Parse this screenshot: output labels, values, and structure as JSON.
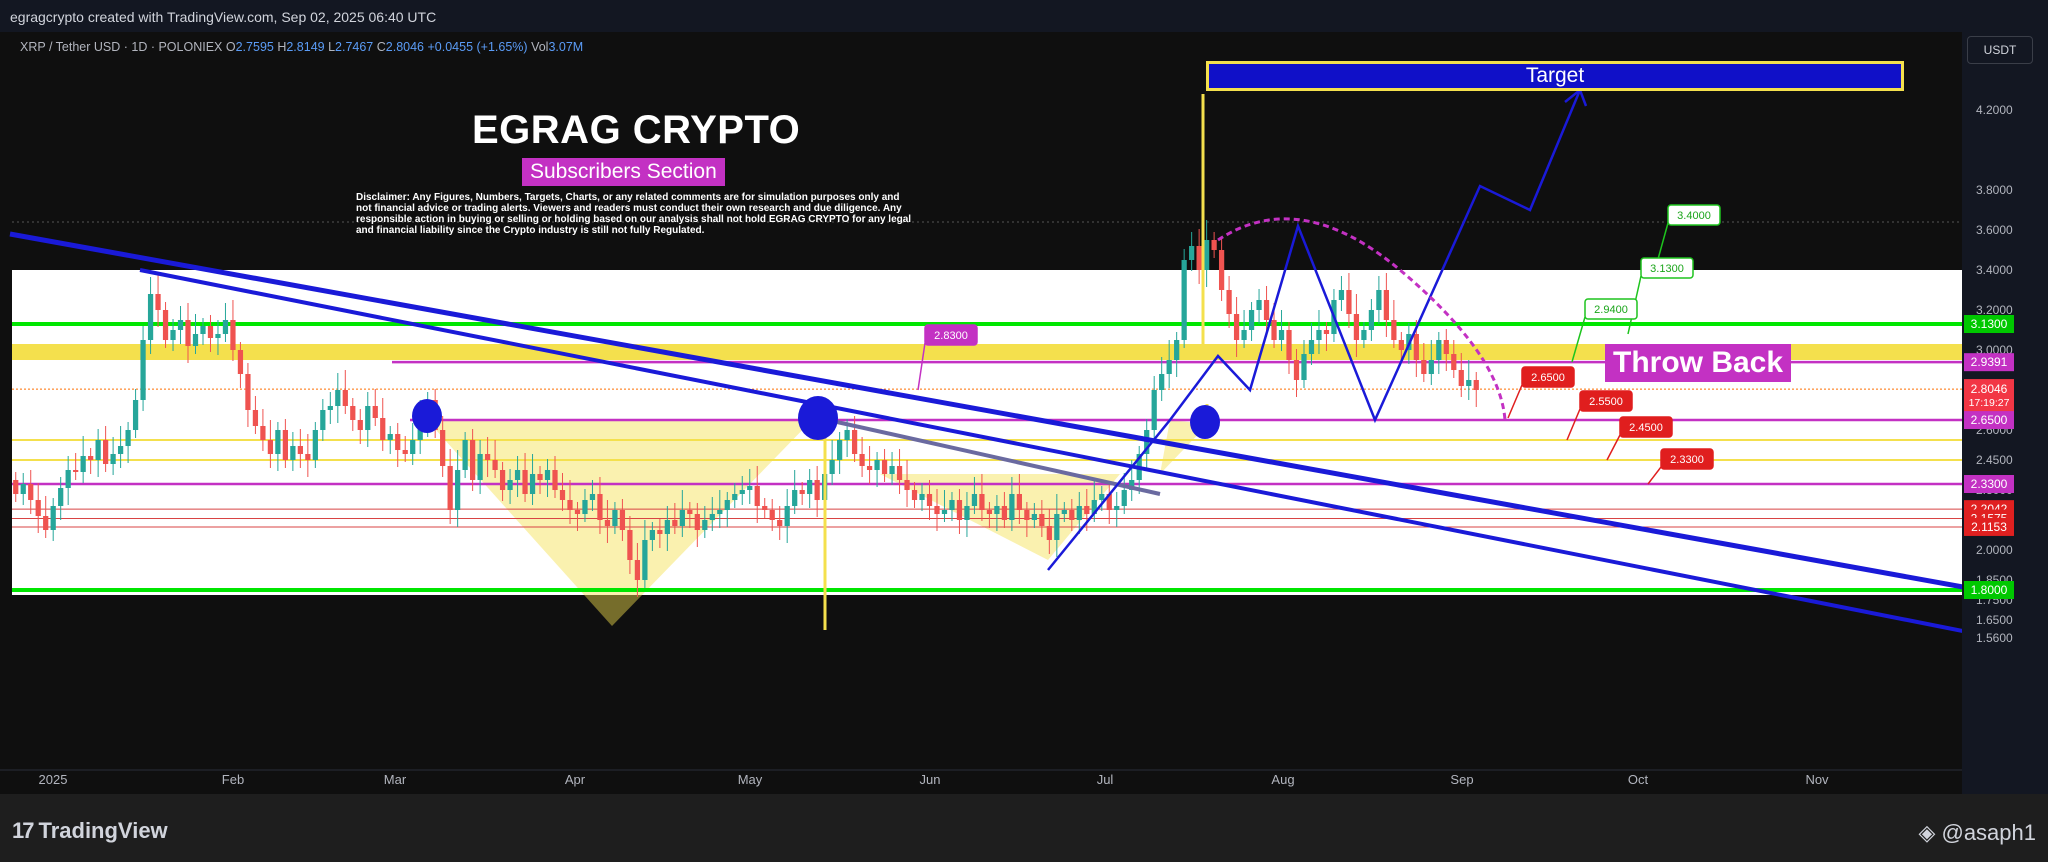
{
  "header": {
    "attribution": "egragcrypto created with TradingView.com, Sep 02, 2025 06:40 UTC"
  },
  "legend": {
    "symbol": "XRP / Tether USD · 1D · POLONIEX",
    "o_label": "O",
    "o": "2.7595",
    "h_label": "H",
    "h": "2.8149",
    "l_label": "L",
    "l": "2.7467",
    "c_label": "C",
    "c": "2.8046",
    "change": "+0.0455 (+1.65%)",
    "vol_label": "Vol",
    "vol": "3.07M"
  },
  "currency_button": "USDT",
  "annotations": {
    "title": "EGRAG CRYPTO",
    "subscribers": "Subscribers Section",
    "disclaimer": "Disclaimer: Any Figures, Numbers, Targets, Charts, or any related comments are for simulation purposes only and not financial advice or trading alerts. Viewers and readers must conduct their own research and due diligence. Any responsible action in buying or selling or holding based on our analysis shall not hold EGRAG CRYPTO for any legal and financial liability since the Crypto industry is still not fully Regulated.",
    "throw_back": "Throw Back",
    "target": "Target"
  },
  "footer": {
    "brand": "TradingView",
    "author": "@asaph1"
  },
  "colors": {
    "up": "#26a69a",
    "down": "#ef5350",
    "green_line": "#00e600",
    "yellow": "#f4e04d",
    "magenta": "#c331c3",
    "blue": "#1a1ad8",
    "red_line": "#d84343",
    "white_band": "#ffffff"
  },
  "chart_data": {
    "type": "candlestick",
    "timeframe": "1D",
    "y_axis_labels": [
      "4.2000",
      "3.8000",
      "3.6000",
      "3.4000",
      "3.2000",
      "3.0000",
      "2.8000",
      "2.6000",
      "2.4500",
      "2.3000",
      "2.0000",
      "1.8500",
      "1.7500",
      "1.6500",
      "1.5600"
    ],
    "x_axis_labels": [
      "2025",
      "Feb",
      "Mar",
      "Apr",
      "May",
      "Jun",
      "Jul",
      "Aug",
      "Sep",
      "Oct",
      "Nov"
    ],
    "last_price": "2.8046",
    "countdown": "17:19:27",
    "price_tags": [
      {
        "value": "3.1300",
        "color": "#00c800"
      },
      {
        "value": "2.9391",
        "color": "#c331c3"
      },
      {
        "value": "2.6500",
        "color": "#c331c3"
      },
      {
        "value": "2.3300",
        "color": "#c331c3"
      },
      {
        "value": "2.2042",
        "color": "#e02020"
      },
      {
        "value": "2.1575",
        "color": "#e02020"
      },
      {
        "value": "2.1153",
        "color": "#e02020"
      },
      {
        "value": "1.8000",
        "color": "#00c800"
      }
    ],
    "green_callouts": [
      "3.4000",
      "3.1300",
      "2.9400"
    ],
    "red_callouts": [
      "2.6500",
      "2.5500",
      "2.4500",
      "2.3300"
    ],
    "magenta_callouts": [
      "2.8300"
    ],
    "horizontal_levels": {
      "green": [
        3.13,
        1.8
      ],
      "magenta": [
        2.9391,
        2.65,
        2.33
      ],
      "red": [
        2.2042,
        2.1575,
        2.1153
      ],
      "yellow": [
        2.55,
        2.45
      ]
    },
    "target_zone": [
      4.38,
      4.5
    ],
    "pattern": "inverse head and shoulders",
    "closes": [
      2.28,
      2.33,
      2.25,
      2.17,
      2.1,
      2.22,
      2.31,
      2.4,
      2.39,
      2.47,
      2.45,
      2.55,
      2.43,
      2.48,
      2.52,
      2.6,
      2.75,
      3.05,
      3.28,
      3.2,
      3.05,
      3.1,
      3.15,
      3.02,
      3.08,
      3.12,
      3.06,
      3.08,
      3.15,
      3.0,
      2.88,
      2.7,
      2.62,
      2.55,
      2.48,
      2.6,
      2.45,
      2.52,
      2.48,
      2.45,
      2.6,
      2.7,
      2.72,
      2.8,
      2.72,
      2.65,
      2.6,
      2.72,
      2.66,
      2.55,
      2.58,
      2.5,
      2.48,
      2.55,
      2.65,
      2.75,
      2.6,
      2.42,
      2.2,
      2.4,
      2.55,
      2.35,
      2.48,
      2.45,
      2.4,
      2.3,
      2.35,
      2.4,
      2.28,
      2.38,
      2.35,
      2.4,
      2.3,
      2.25,
      2.2,
      2.18,
      2.25,
      2.28,
      2.15,
      2.12,
      2.2,
      2.1,
      1.95,
      1.85,
      2.05,
      2.1,
      2.08,
      2.15,
      2.12,
      2.2,
      2.18,
      2.1,
      2.15,
      2.18,
      2.2,
      2.25,
      2.28,
      2.3,
      2.32,
      2.22,
      2.2,
      2.15,
      2.12,
      2.22,
      2.3,
      2.28,
      2.35,
      2.25,
      2.38,
      2.45,
      2.55,
      2.6,
      2.48,
      2.42,
      2.4,
      2.45,
      2.38,
      2.42,
      2.35,
      2.3,
      2.25,
      2.28,
      2.22,
      2.18,
      2.2,
      2.25,
      2.15,
      2.22,
      2.28,
      2.2,
      2.18,
      2.22,
      2.15,
      2.28,
      2.2,
      2.15,
      2.18,
      2.12,
      2.05,
      2.18,
      2.2,
      2.15,
      2.22,
      2.18,
      2.25,
      2.28,
      2.2,
      2.22,
      2.3,
      2.35,
      2.48,
      2.6,
      2.8,
      2.88,
      2.95,
      3.05,
      3.45,
      3.52,
      3.4,
      3.55,
      3.5,
      3.3,
      3.18,
      3.05,
      3.1,
      3.2,
      3.25,
      3.15,
      3.05,
      3.1,
      2.95,
      2.85,
      2.98,
      3.05,
      3.1,
      3.08,
      3.25,
      3.3,
      3.18,
      3.05,
      3.1,
      3.2,
      3.3,
      3.15,
      3.05,
      3.0,
      3.08,
      2.95,
      2.88,
      2.95,
      3.05,
      2.98,
      2.9,
      2.82,
      2.85,
      2.8
    ]
  }
}
